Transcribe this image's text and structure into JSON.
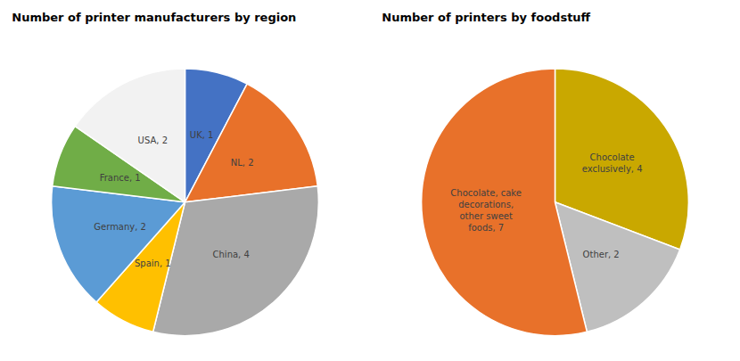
{
  "chart_data": [
    {
      "type": "pie",
      "title": "Number of printer manufacturers by region",
      "categories": [
        "UK, 1",
        "NL, 2",
        "China, 4",
        "Spain, 1",
        "Germany, 2",
        "France, 1",
        "USA, 2"
      ],
      "values": [
        1,
        2,
        4,
        1,
        2,
        1,
        2
      ],
      "colors": [
        "#4472C4",
        "#E8712A",
        "#A9A9A9",
        "#FFC000",
        "#5B9BD5",
        "#70AD47",
        "#F2F2F2"
      ]
    },
    {
      "type": "pie",
      "title": "Number of printers by foodstuff",
      "categories": [
        "Chocolate\nexclusively, 4",
        "Other, 2",
        "Chocolate, cake\ndecorations,\nother sweet\nfoods, 7"
      ],
      "values": [
        4,
        2,
        7
      ],
      "colors": [
        "#C9A800",
        "#BFBFBF",
        "#E8712A"
      ]
    }
  ]
}
